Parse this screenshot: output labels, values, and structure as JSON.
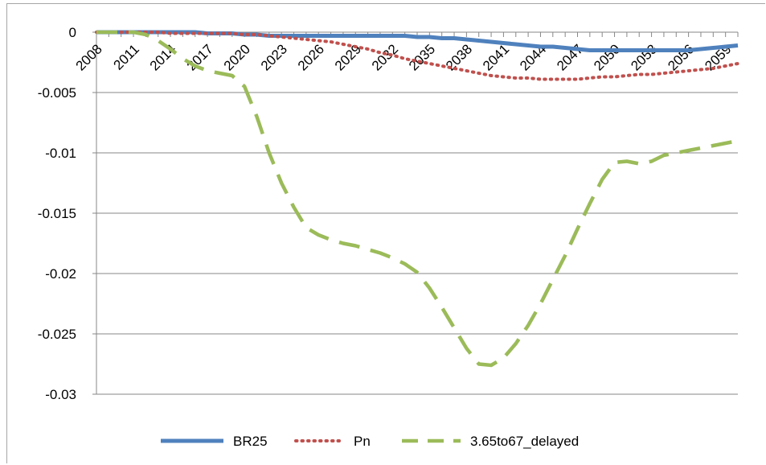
{
  "chart_data": {
    "type": "line",
    "title": "",
    "xlabel": "",
    "ylabel": "",
    "ylim": [
      -0.03,
      0
    ],
    "yticks": [
      "0",
      "-0.005",
      "-0.01",
      "-0.015",
      "-0.02",
      "-0.025",
      "-0.03"
    ],
    "xticks": [
      "2008",
      "2011",
      "2014",
      "2017",
      "2020",
      "2023",
      "2026",
      "2029",
      "2032",
      "2035",
      "2038",
      "2041",
      "2044",
      "2047",
      "2050",
      "2053",
      "2056",
      "2059"
    ],
    "x": [
      2008,
      2009,
      2010,
      2011,
      2012,
      2013,
      2014,
      2015,
      2016,
      2017,
      2018,
      2019,
      2020,
      2021,
      2022,
      2023,
      2024,
      2025,
      2026,
      2027,
      2028,
      2029,
      2030,
      2031,
      2032,
      2033,
      2034,
      2035,
      2036,
      2037,
      2038,
      2039,
      2040,
      2041,
      2042,
      2043,
      2044,
      2045,
      2046,
      2047,
      2048,
      2049,
      2050,
      2051,
      2052,
      2053,
      2054,
      2055,
      2056,
      2057,
      2058,
      2059,
      2060
    ],
    "grid": true,
    "legend": "bottom",
    "series": [
      {
        "name": "BR25",
        "color": "#4f81bd",
        "dash": "solid",
        "values": [
          0,
          0,
          0,
          0,
          0,
          0,
          0,
          0,
          0,
          -0.0001,
          -0.0001,
          -0.0001,
          -0.0002,
          -0.0002,
          -0.0003,
          -0.0003,
          -0.0003,
          -0.0003,
          -0.0003,
          -0.0003,
          -0.0003,
          -0.0003,
          -0.0003,
          -0.0003,
          -0.0003,
          -0.0003,
          -0.0004,
          -0.0004,
          -0.0005,
          -0.0005,
          -0.0006,
          -0.0007,
          -0.0008,
          -0.0009,
          -0.001,
          -0.0011,
          -0.0012,
          -0.0012,
          -0.0013,
          -0.0014,
          -0.0015,
          -0.0015,
          -0.0015,
          -0.0015,
          -0.0015,
          -0.0015,
          -0.0015,
          -0.0015,
          -0.0015,
          -0.0014,
          -0.0013,
          -0.0012,
          -0.0011
        ]
      },
      {
        "name": "Pn",
        "color": "#c0504d",
        "dash": "dot",
        "values": [
          0,
          0,
          0,
          0,
          0,
          0,
          -0.0001,
          -0.0001,
          -0.0001,
          -0.0001,
          -0.0001,
          -0.0001,
          -0.0002,
          -0.0002,
          -0.0003,
          -0.0004,
          -0.0005,
          -0.0006,
          -0.0007,
          -0.0008,
          -0.001,
          -0.0012,
          -0.0014,
          -0.0017,
          -0.0019,
          -0.0022,
          -0.0024,
          -0.0026,
          -0.0028,
          -0.003,
          -0.0032,
          -0.0034,
          -0.0036,
          -0.0037,
          -0.0038,
          -0.0038,
          -0.0039,
          -0.0039,
          -0.0039,
          -0.0039,
          -0.0038,
          -0.0037,
          -0.0037,
          -0.0036,
          -0.0035,
          -0.0035,
          -0.0034,
          -0.0033,
          -0.0032,
          -0.0031,
          -0.003,
          -0.0028,
          -0.0026
        ]
      },
      {
        "name": "3.65to67_delayed",
        "color": "#9bbb59",
        "dash": "dash",
        "values": [
          0,
          0,
          0,
          0,
          -0.0002,
          -0.0007,
          -0.0014,
          -0.0022,
          -0.0028,
          -0.0032,
          -0.0034,
          -0.0036,
          -0.0045,
          -0.007,
          -0.01,
          -0.0125,
          -0.0145,
          -0.0162,
          -0.0168,
          -0.0172,
          -0.0175,
          -0.0177,
          -0.018,
          -0.0183,
          -0.0187,
          -0.0192,
          -0.0199,
          -0.0212,
          -0.0228,
          -0.0245,
          -0.0262,
          -0.0275,
          -0.0276,
          -0.027,
          -0.0258,
          -0.0243,
          -0.0225,
          -0.0205,
          -0.0185,
          -0.0163,
          -0.0142,
          -0.0122,
          -0.0108,
          -0.0107,
          -0.0109,
          -0.0107,
          -0.0102,
          -0.01,
          -0.0098,
          -0.0096,
          -0.0094,
          -0.0092,
          -0.009
        ]
      }
    ]
  }
}
